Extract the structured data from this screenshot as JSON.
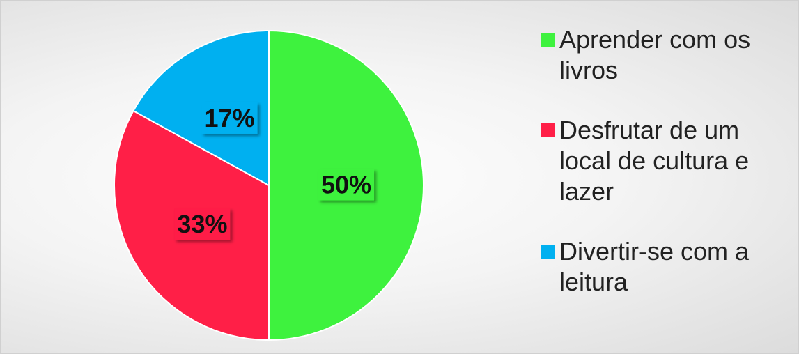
{
  "chart_data": {
    "type": "pie",
    "categories": [
      "Aprender com os livros",
      "Desfrutar de um local de cultura e lazer",
      "Divertir-se com a leitura"
    ],
    "values": [
      50,
      33,
      17
    ],
    "value_labels": [
      "50%",
      "33%",
      "17%"
    ],
    "colors": [
      "#3ef23e",
      "#ff1f47",
      "#00b0f0"
    ],
    "legend": "right"
  }
}
